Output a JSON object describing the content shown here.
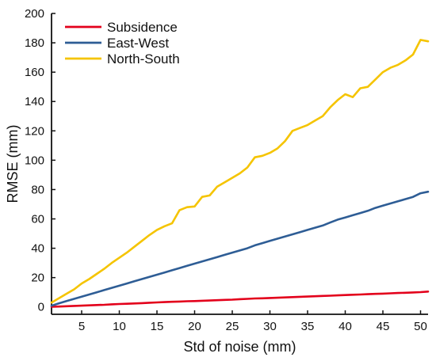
{
  "chart_data": {
    "type": "line",
    "title": "",
    "xlabel": "Std of noise (mm)",
    "ylabel": "RMSE (mm)",
    "xlim": [
      1,
      51
    ],
    "ylim": [
      -5,
      200
    ],
    "xticks": [
      5,
      10,
      15,
      20,
      25,
      30,
      35,
      40,
      45,
      50
    ],
    "yticks": [
      0,
      20,
      40,
      60,
      80,
      100,
      120,
      140,
      160,
      180,
      200
    ],
    "grid": false,
    "legend_position": "top-left",
    "x": [
      1,
      2,
      3,
      4,
      5,
      6,
      7,
      8,
      9,
      10,
      11,
      12,
      13,
      14,
      15,
      16,
      17,
      18,
      19,
      20,
      21,
      22,
      23,
      24,
      25,
      26,
      27,
      28,
      29,
      30,
      31,
      32,
      33,
      34,
      35,
      36,
      37,
      38,
      39,
      40,
      41,
      42,
      43,
      44,
      45,
      46,
      47,
      48,
      49,
      50,
      51
    ],
    "series": [
      {
        "name": "Subsidence",
        "color": "#e3001b",
        "values": [
          0.1,
          0.3,
          0.5,
          0.7,
          0.9,
          1.1,
          1.3,
          1.5,
          1.8,
          2.0,
          2.2,
          2.4,
          2.6,
          2.9,
          3.1,
          3.3,
          3.5,
          3.7,
          3.9,
          4.0,
          4.2,
          4.4,
          4.6,
          4.8,
          5.0,
          5.3,
          5.5,
          5.8,
          5.9,
          6.1,
          6.3,
          6.5,
          6.7,
          6.9,
          7.1,
          7.3,
          7.5,
          7.7,
          7.9,
          8.1,
          8.3,
          8.5,
          8.7,
          8.9,
          9.1,
          9.3,
          9.5,
          9.7,
          9.9,
          10.1,
          10.5
        ]
      },
      {
        "name": "East-West",
        "color": "#2e5d95",
        "values": [
          0.8,
          2.5,
          4.0,
          5.5,
          7.0,
          8.5,
          10.0,
          11.5,
          13.0,
          14.5,
          16.0,
          17.5,
          19.0,
          20.5,
          22.0,
          23.5,
          25.0,
          26.5,
          28.0,
          29.5,
          31.0,
          32.5,
          34.0,
          35.5,
          37.0,
          38.5,
          40.0,
          42.0,
          43.5,
          45.0,
          46.5,
          48.0,
          49.5,
          51.0,
          52.5,
          54.0,
          55.5,
          57.5,
          59.5,
          61.0,
          62.5,
          64.0,
          65.5,
          67.5,
          69.0,
          70.5,
          72.0,
          73.5,
          75.0,
          77.5,
          78.5
        ]
      },
      {
        "name": "North-South",
        "color": "#f5c400",
        "values": [
          3,
          6,
          9,
          12,
          16,
          19,
          22.5,
          26,
          30,
          33.5,
          37,
          41,
          45,
          49,
          52.5,
          55,
          57,
          66,
          68,
          68.5,
          75,
          76,
          82,
          85,
          88,
          91,
          95,
          102,
          103,
          105,
          108,
          113,
          120,
          122,
          124,
          127,
          130,
          136,
          141,
          145,
          143,
          149,
          150,
          155,
          160,
          163,
          165,
          168,
          172,
          182,
          181
        ]
      }
    ]
  }
}
